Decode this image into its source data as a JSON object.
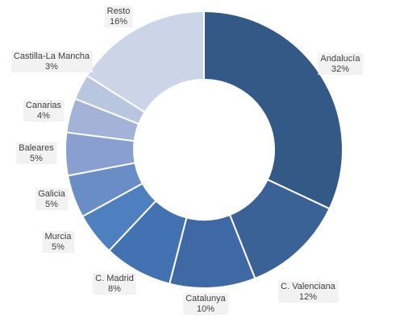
{
  "chart_data": {
    "type": "pie",
    "variant": "donut",
    "categories": [
      "Andalucía",
      "C. Valenciana",
      "Catalunya",
      "C. Madrid",
      "Murcia",
      "Galicia",
      "Baleares",
      "Canarias",
      "Castilla-La Mancha",
      "Resto"
    ],
    "values": [
      32,
      12,
      10,
      8,
      5,
      5,
      5,
      4,
      3,
      16
    ],
    "value_labels": [
      "32%",
      "12%",
      "10%",
      "8%",
      "5%",
      "5%",
      "5%",
      "4%",
      "3%",
      "16%"
    ],
    "colors": [
      "#335a86",
      "#3a6296",
      "#3e69a4",
      "#4272b2",
      "#4e80bf",
      "#698ec6",
      "#889fcf",
      "#a2b3d7",
      "#b9c6e0",
      "#cbd5e7"
    ],
    "start_angle_deg": 0,
    "direction": "clockwise",
    "legend": "none",
    "title": ""
  }
}
